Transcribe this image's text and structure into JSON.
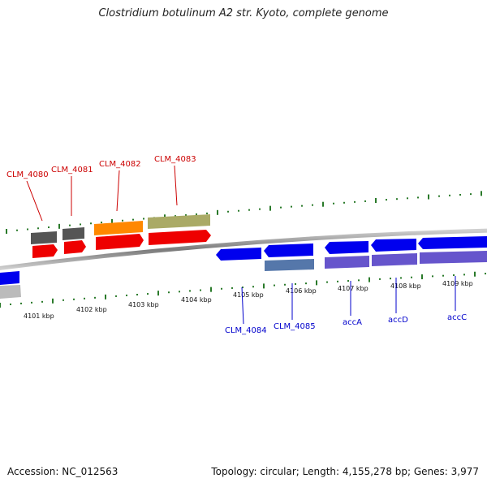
{
  "title": "Clostridium botulinum A2 str. Kyoto, complete genome",
  "footer": {
    "accession": "Accession: NC_012563",
    "summary": "Topology: circular; Length: 4,155,278 bp; Genes: 3,977"
  },
  "colors": {
    "backbone": "#888888",
    "tick": "#2a7a2a",
    "label_red": "#cc0000",
    "label_blue": "#0000cc"
  },
  "kbp_labels": [
    "4101 kbp",
    "4102 kbp",
    "4103 kbp",
    "4104 kbp",
    "4105 kbp",
    "4106 kbp",
    "4107 kbp",
    "4108 kbp",
    "4109 kbp"
  ],
  "genes": [
    {
      "id": "gene-0",
      "label": "",
      "strand": "reverse",
      "color": "#0000ee"
    },
    {
      "id": "gene-1",
      "label": "CLM_4080",
      "strand": "forward",
      "color": "#ee0000"
    },
    {
      "id": "gene-2",
      "label": "CLM_4081",
      "strand": "forward",
      "color": "#ee0000"
    },
    {
      "id": "gene-3",
      "label": "CLM_4082",
      "strand": "forward",
      "color": "#ee0000"
    },
    {
      "id": "gene-4",
      "label": "CLM_4083",
      "strand": "forward",
      "color": "#ee0000"
    },
    {
      "id": "gene-5",
      "label": "CLM_4084",
      "strand": "reverse",
      "color": "#0000ee"
    },
    {
      "id": "gene-6",
      "label": "CLM_4085",
      "strand": "reverse",
      "color": "#0000ee"
    },
    {
      "id": "gene-7",
      "label": "accA",
      "strand": "reverse",
      "color": "#0000ee"
    },
    {
      "id": "gene-8",
      "label": "accD",
      "strand": "reverse",
      "color": "#0000ee"
    },
    {
      "id": "gene-9",
      "label": "accC",
      "strand": "reverse",
      "color": "#0000ee"
    }
  ],
  "features": [
    {
      "id": "feat-0",
      "color": "#bbbbbb"
    },
    {
      "id": "feat-1",
      "color": "#555555"
    },
    {
      "id": "feat-2",
      "color": "#555555"
    },
    {
      "id": "feat-3",
      "color": "#ff8800"
    },
    {
      "id": "feat-4",
      "color": "#aaaa66"
    },
    {
      "id": "feat-5",
      "color": "#5577aa"
    },
    {
      "id": "feat-6",
      "color": "#6655cc"
    },
    {
      "id": "feat-7",
      "color": "#6655cc"
    },
    {
      "id": "feat-8",
      "color": "#6655cc"
    }
  ]
}
